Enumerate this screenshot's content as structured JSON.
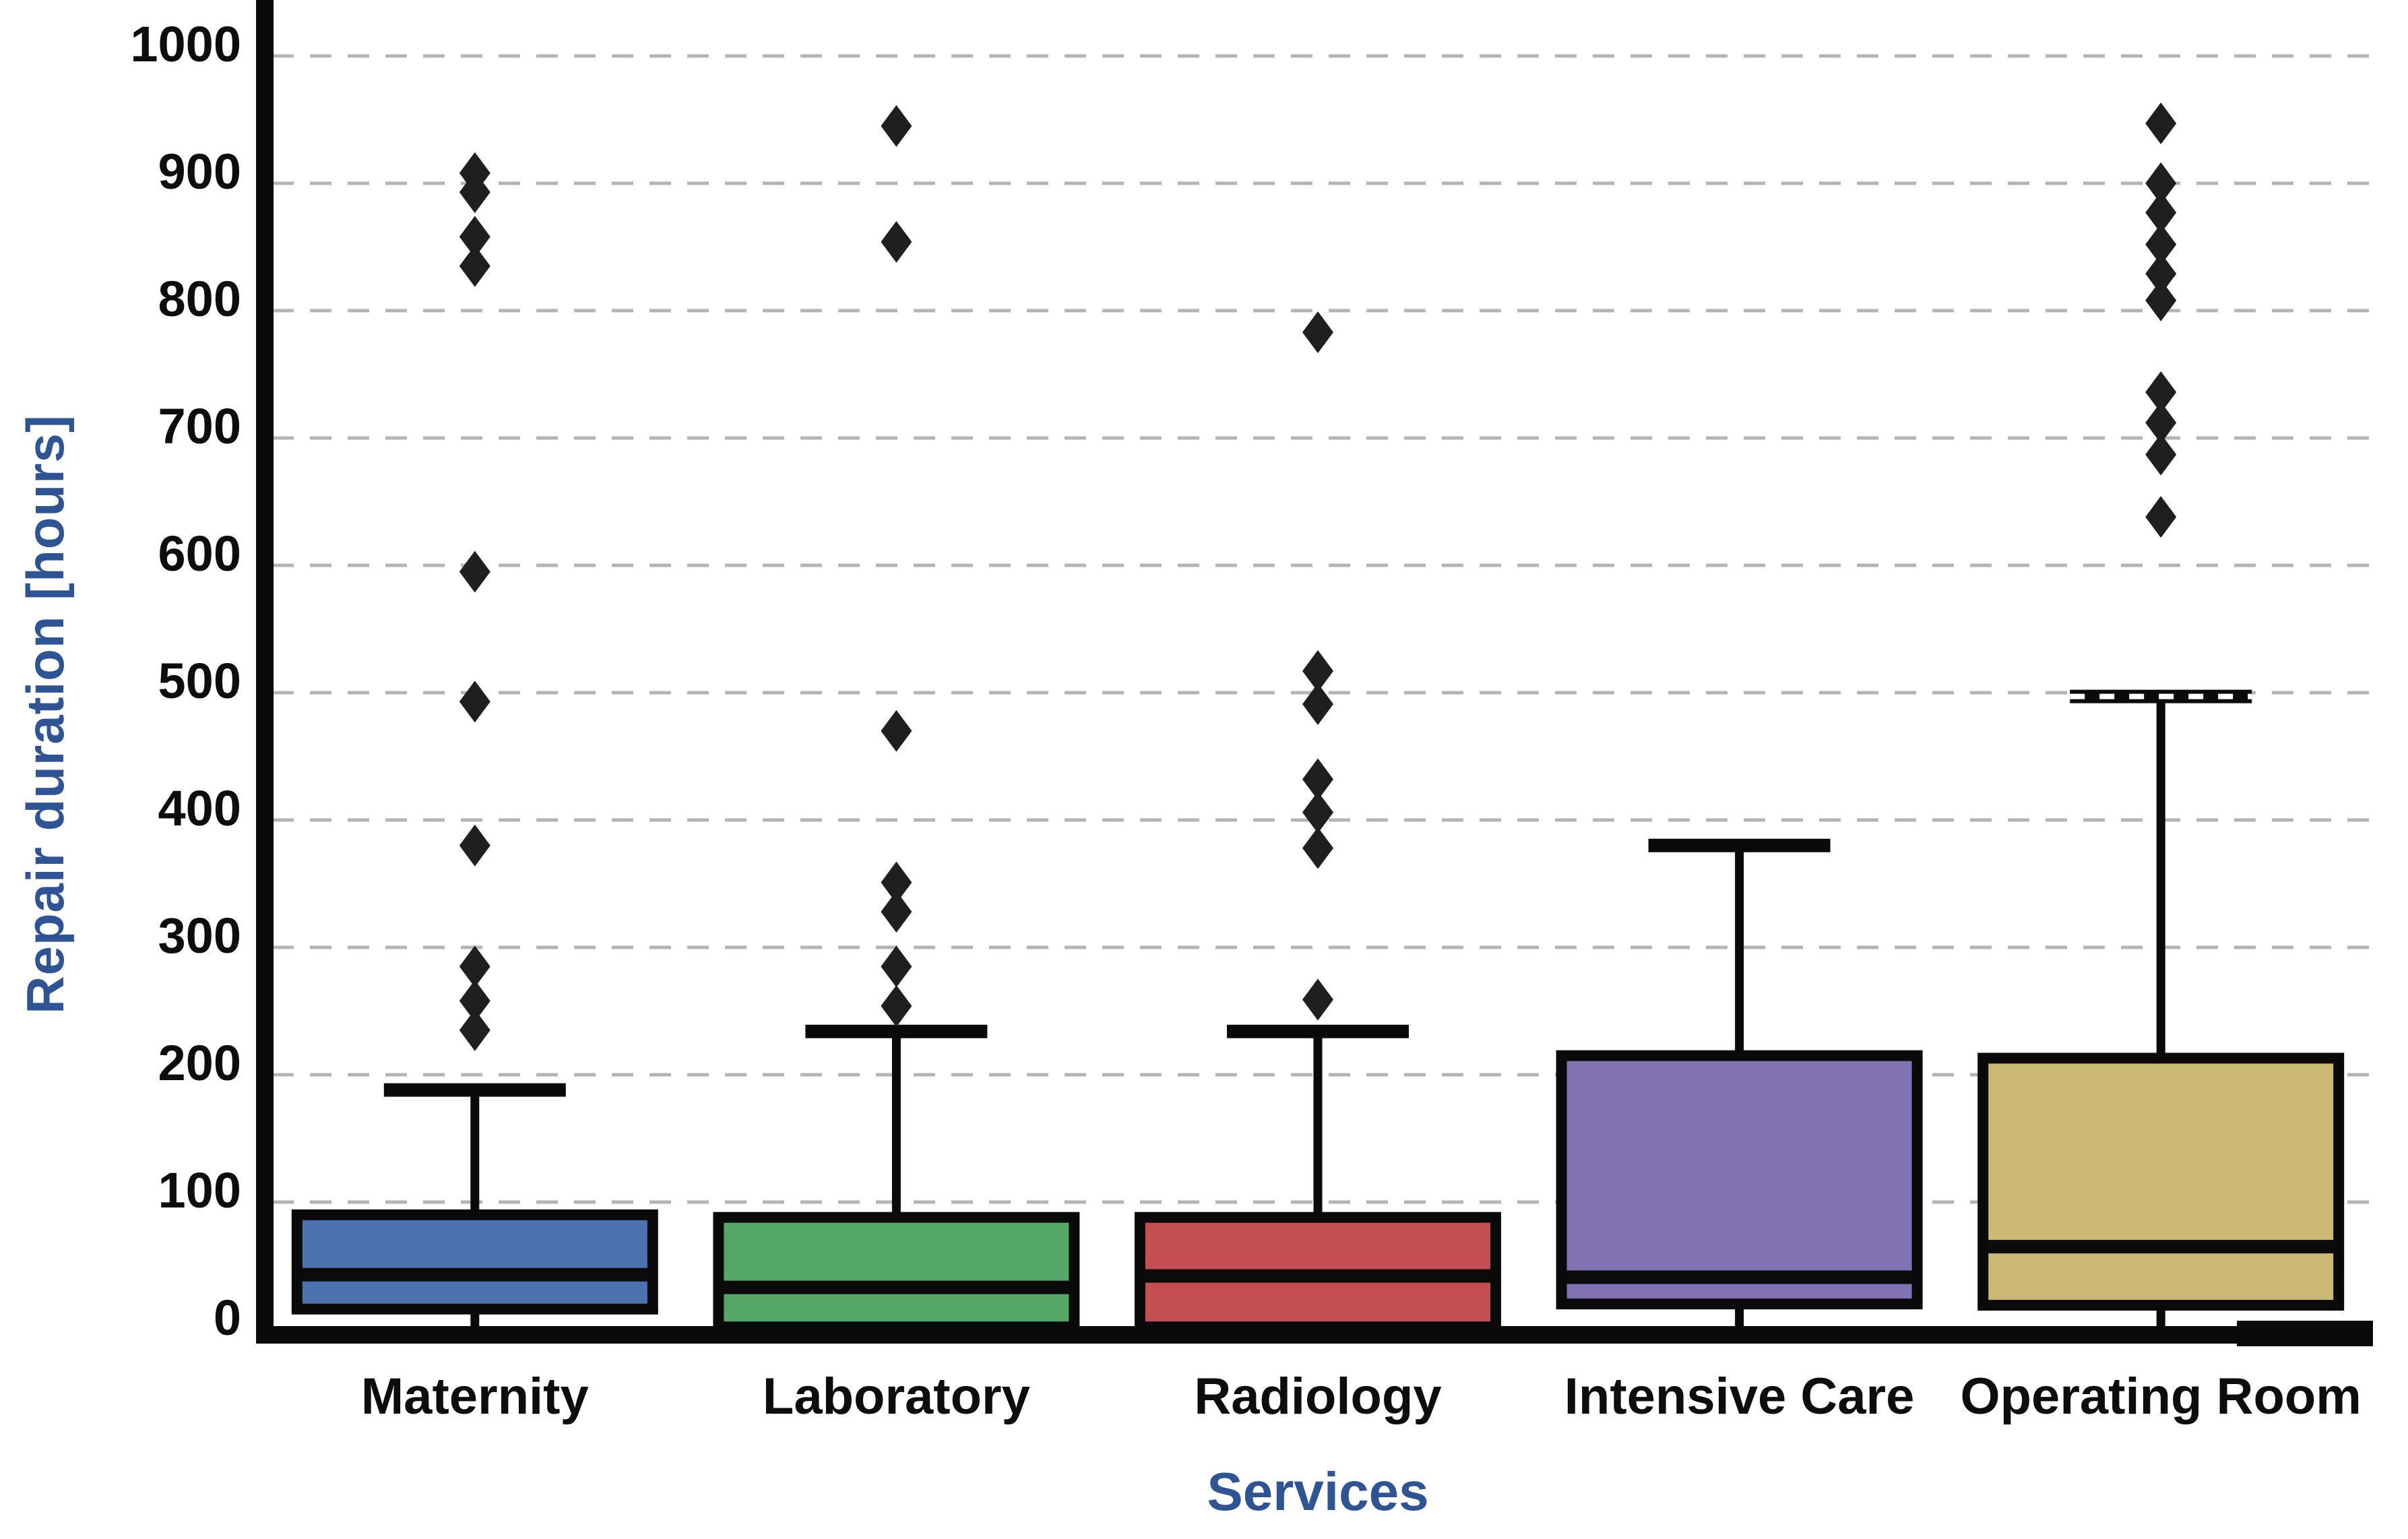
{
  "figure": {
    "xlabel": "Services",
    "ylabel": "Repair duration [hours]",
    "axis_title_color": "#2E5496",
    "tick_label_color": "#0d0d0d",
    "gridline_color": "#b4b4b4",
    "spine_color": "#0a0a0a",
    "outlier_color": "#1f1f1f",
    "background_color": "#ffffff"
  },
  "chart_data": {
    "type": "box",
    "title": "",
    "xlabel": "Services",
    "ylabel": "Repair duration [hours]",
    "categories": [
      "Maternity",
      "Laboratory",
      "Radiology",
      "Intensive Care",
      "Operating Room"
    ],
    "yticks": [
      0,
      100,
      200,
      300,
      400,
      500,
      600,
      700,
      800,
      900,
      1000
    ],
    "ylim": [
      0,
      1040
    ],
    "grid": "horizontal-dashed",
    "legend": "none",
    "orientation": "vertical",
    "series": [
      {
        "name": "Maternity",
        "color": "#4C72B0",
        "whisker_low": 0,
        "q1": 16,
        "median": 43,
        "q3": 90,
        "whisker_high": 188,
        "outliers": [
          908,
          893,
          858,
          835,
          595,
          493,
          380,
          285,
          258,
          235
        ]
      },
      {
        "name": "Laboratory",
        "color": "#55A868",
        "whisker_low": 0,
        "q1": 2,
        "median": 33,
        "q3": 88,
        "whisker_high": 234,
        "outliers": [
          945,
          854,
          470,
          351,
          328,
          285,
          254
        ]
      },
      {
        "name": "Radiology",
        "color": "#C44E52",
        "whisker_low": 0,
        "q1": 2,
        "median": 42,
        "q3": 88,
        "whisker_high": 234,
        "outliers": [
          783,
          517,
          491,
          432,
          406,
          378,
          259
        ]
      },
      {
        "name": "Intensive Care",
        "color": "#8172B2",
        "whisker_low": 0,
        "q1": 20,
        "median": 41,
        "q3": 215,
        "whisker_high": 380,
        "outliers": []
      },
      {
        "name": "Operating Room",
        "color": "#CCB974",
        "whisker_low": 0,
        "q1": 19,
        "median": 65,
        "q3": 213,
        "whisker_high": 497,
        "outliers": [
          947,
          900,
          877,
          852,
          829,
          808,
          736,
          712,
          687,
          638
        ]
      }
    ]
  }
}
